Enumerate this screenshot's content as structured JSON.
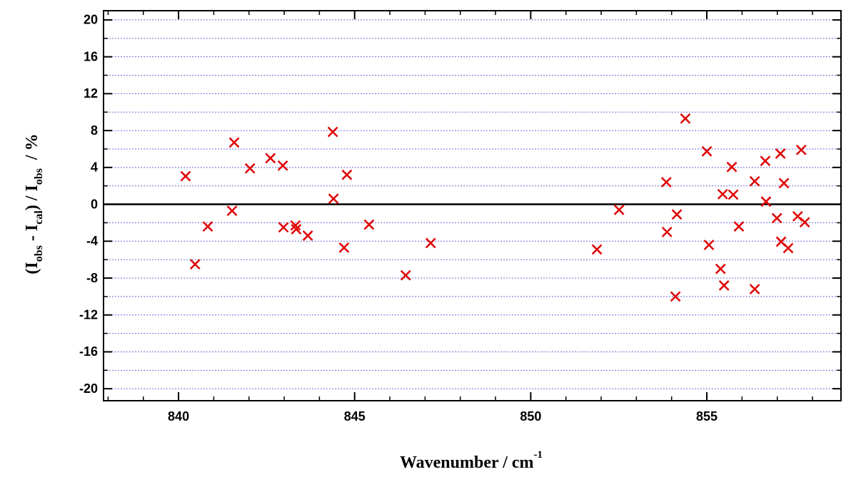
{
  "chart_data": {
    "type": "scatter",
    "xlabel_parts": [
      "Wavenumber / cm",
      "-1"
    ],
    "ylabel_parts": [
      "(I",
      "obs",
      " - I",
      "cal",
      ") / I",
      "obs",
      "  / %"
    ],
    "color": "#e00000",
    "xlim": [
      837.87,
      858.81
    ],
    "ylim": [
      -21.3,
      21
    ],
    "xticks": [
      840,
      845,
      850,
      855
    ],
    "xminorticks": [
      838,
      839,
      841,
      842,
      843,
      844,
      846,
      847,
      848,
      849,
      851,
      852,
      853,
      854,
      856,
      857,
      858
    ],
    "yticks": [
      -20,
      -16,
      -12,
      -8,
      -4,
      0,
      4,
      8,
      12,
      16,
      20
    ],
    "yminorticks": [
      -18,
      -14,
      -10,
      -6,
      -2,
      2,
      6,
      10,
      14,
      18
    ],
    "grid": true,
    "zero_line": 0,
    "x": [
      840.2,
      840.47,
      840.83,
      841.52,
      841.58,
      842.03,
      842.61,
      842.96,
      842.98,
      843.32,
      843.34,
      843.67,
      844.38,
      844.4,
      844.7,
      844.78,
      845.41,
      846.45,
      847.16,
      851.88,
      852.51,
      853.85,
      853.87,
      854.11,
      854.15,
      854.39,
      855.0,
      855.06,
      855.39,
      855.45,
      855.49,
      855.71,
      855.75,
      855.91,
      856.36,
      856.36,
      856.66,
      856.68,
      856.99,
      857.09,
      857.11,
      857.19,
      857.31,
      857.58,
      857.68,
      857.78
    ],
    "values": [
      3.05,
      -6.5,
      -2.4,
      -0.7,
      6.7,
      3.9,
      5.0,
      4.2,
      -2.5,
      -2.3,
      -2.7,
      -3.4,
      7.85,
      0.6,
      -4.7,
      3.2,
      -2.2,
      -7.7,
      -4.2,
      -4.9,
      -0.6,
      2.4,
      -3.0,
      -10.0,
      -1.1,
      9.3,
      5.75,
      -4.4,
      -7.0,
      1.1,
      -8.8,
      4.05,
      1.05,
      -2.4,
      2.5,
      -9.2,
      4.7,
      0.3,
      -1.5,
      5.5,
      -4.05,
      2.3,
      -4.75,
      -1.3,
      5.9,
      -1.95
    ]
  }
}
